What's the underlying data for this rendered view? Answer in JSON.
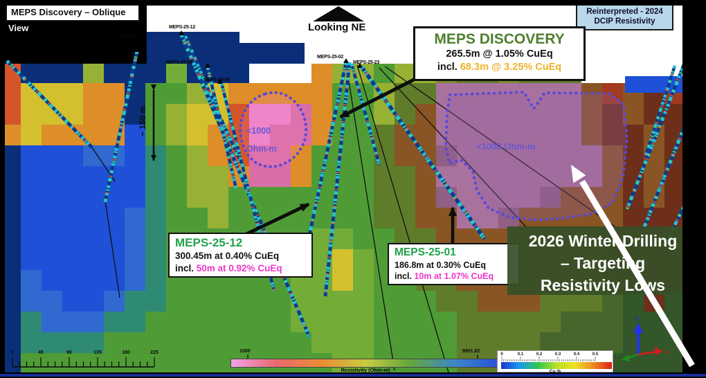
{
  "header": {
    "view_label_line1": "MEPS Discovery – Oblique",
    "view_label_line2": "View",
    "orientation_label": "Looking NE",
    "legend_box_line1": "Reinterpreted - 2024",
    "legend_box_line2": "DCIP Resistivity"
  },
  "callouts": {
    "discovery": {
      "title": "MEPS DISCOVERY",
      "line1": "265.5m @ 1.05% CuEq",
      "line2_prefix": "incl. ",
      "line2_highlight": "68.3m @ 3.25% CuEq"
    },
    "meps_25_12": {
      "title": "MEPS-25-12",
      "line1": "300.45m at 0.40% CuEq",
      "line2_prefix": "incl. ",
      "line2_highlight": "50m at 0.92% CuEq"
    },
    "meps_25_01": {
      "title": "MEPS-25-01",
      "line1": "186.8m at 0.30% CuEq",
      "line2_prefix": "incl. ",
      "line2_highlight": "10m at 1.07% CuEq"
    }
  },
  "target_note": {
    "line1": "2026 Winter Drilling",
    "line2": "– Targeting",
    "line3": "Resistivity Lows"
  },
  "resistivity_lows": {
    "left_label_line1": "<1000",
    "left_label_line2": "Ohm-m",
    "right_label": "<1000 Ohm-m"
  },
  "scale_arrow_label": "~ 150 m",
  "drill_collars": [
    "MJ-25-07",
    "MEPS-25-12",
    "MEPS-25-08",
    "MEPS-25-09",
    "MEPS-25-02",
    "MEPS-25-23"
  ],
  "scale_ruler": {
    "ticks": [
      "0",
      "45",
      "90",
      "135",
      "180",
      "225"
    ]
  },
  "resistivity_colorbar": {
    "label": "Resistivity (Ohm-m)",
    "min_label": "1000",
    "max_label": "9901.82",
    "colors": [
      "#f2a2e8",
      "#e86a6e",
      "#ea8c34",
      "#c8cc40",
      "#62a83e",
      "#3c86c8",
      "#2a50d8"
    ]
  },
  "cu_colorbar": {
    "label": "Cu %",
    "ticks": [
      "0",
      "0.1",
      "0.2",
      "0.3",
      "0.4",
      "0.5"
    ],
    "colors": [
      "#1a35cc",
      "#1899ee",
      "#2ec84e",
      "#b8e028",
      "#eee020",
      "#ee8820",
      "#dd2016"
    ]
  },
  "axis_triad": {
    "x": "x",
    "y": "y",
    "z": "z"
  },
  "colors": {
    "green_title": "#4e7e2e",
    "green_hole": "#1fa24a",
    "amber": "#eeb229",
    "magenta": "#ee36cc",
    "legend_blue": "#b9d7ea",
    "purple_outline": "#5b48d8",
    "purple_text": "#6a58cf",
    "target_box_green": "#365028"
  },
  "heatmap": {
    "palette": {
      "K": "#000000",
      "W": "#ffffff",
      "N": "#0a2f78",
      "B": "#1e50d8",
      "b": "#3069d0",
      "T": "#2f8a74",
      "G": "#4f9c36",
      "g": "#74ac38",
      "h": "#97b135",
      "y": "#d4c02e",
      "o": "#de8e28",
      "r": "#d4552a",
      "P": "#ee86cc",
      "p": "#d96ea6",
      "M": "#a8719e",
      "V": "#8f5f84",
      "E": "#8a5524",
      "F": "#7d8a2c",
      "f": "#5f7c2a",
      "v": "#47662c",
      "z": "#33562a",
      "D": "#6e2f1a",
      "R": "#a03a20"
    },
    "rows": [
      "rNNNhNNNgNNNWWWohhGhhFffFfffWWWWWK",
      "ryyyooNGGhyoooooGGhffMMMMMMMEREDRK",
      "ryyyooNGhyyrPPpoGGhfEMMMMMMMEDEDDK",
      "oyooooBGhyorPppoGGfEEMMMMMMMEDDEDK",
      "NBBBbbBTGhorppoGGGfEEVMMMMMMMEDEDK",
      "NBBBBBBTGhhoppoGGGffEMMMMMMMMEDEDK",
      "NBBBBBBTGhhGGGGGGGffEVMMMMVEEEDEDK",
      "NBBBBBbTGGhGGGGGGGffEEMMVEEEEEDDDK",
      "NBBBBBbTGGGGGGGggGGffEEEEEEEEDDDDK",
      "NBBBBBbTGGGGGGGgygGffEEEEEEEEDDDDK",
      "NbBBBBbTGGGGGGggygGGffEEEEEEEDDDDK",
      "NbbBBbTTGGGGGGggggGGGffEEEfffvzDzK",
      "NTbbbTTGGGGGGGggggGGGGfffffvvvzzzK",
      "NTTTTGGGGGGGGGGgggGGGGffffvvvvzzzK",
      "NGGGGGGGGGGGGGGGggGGGGfffvvvvzzzzK"
    ]
  }
}
